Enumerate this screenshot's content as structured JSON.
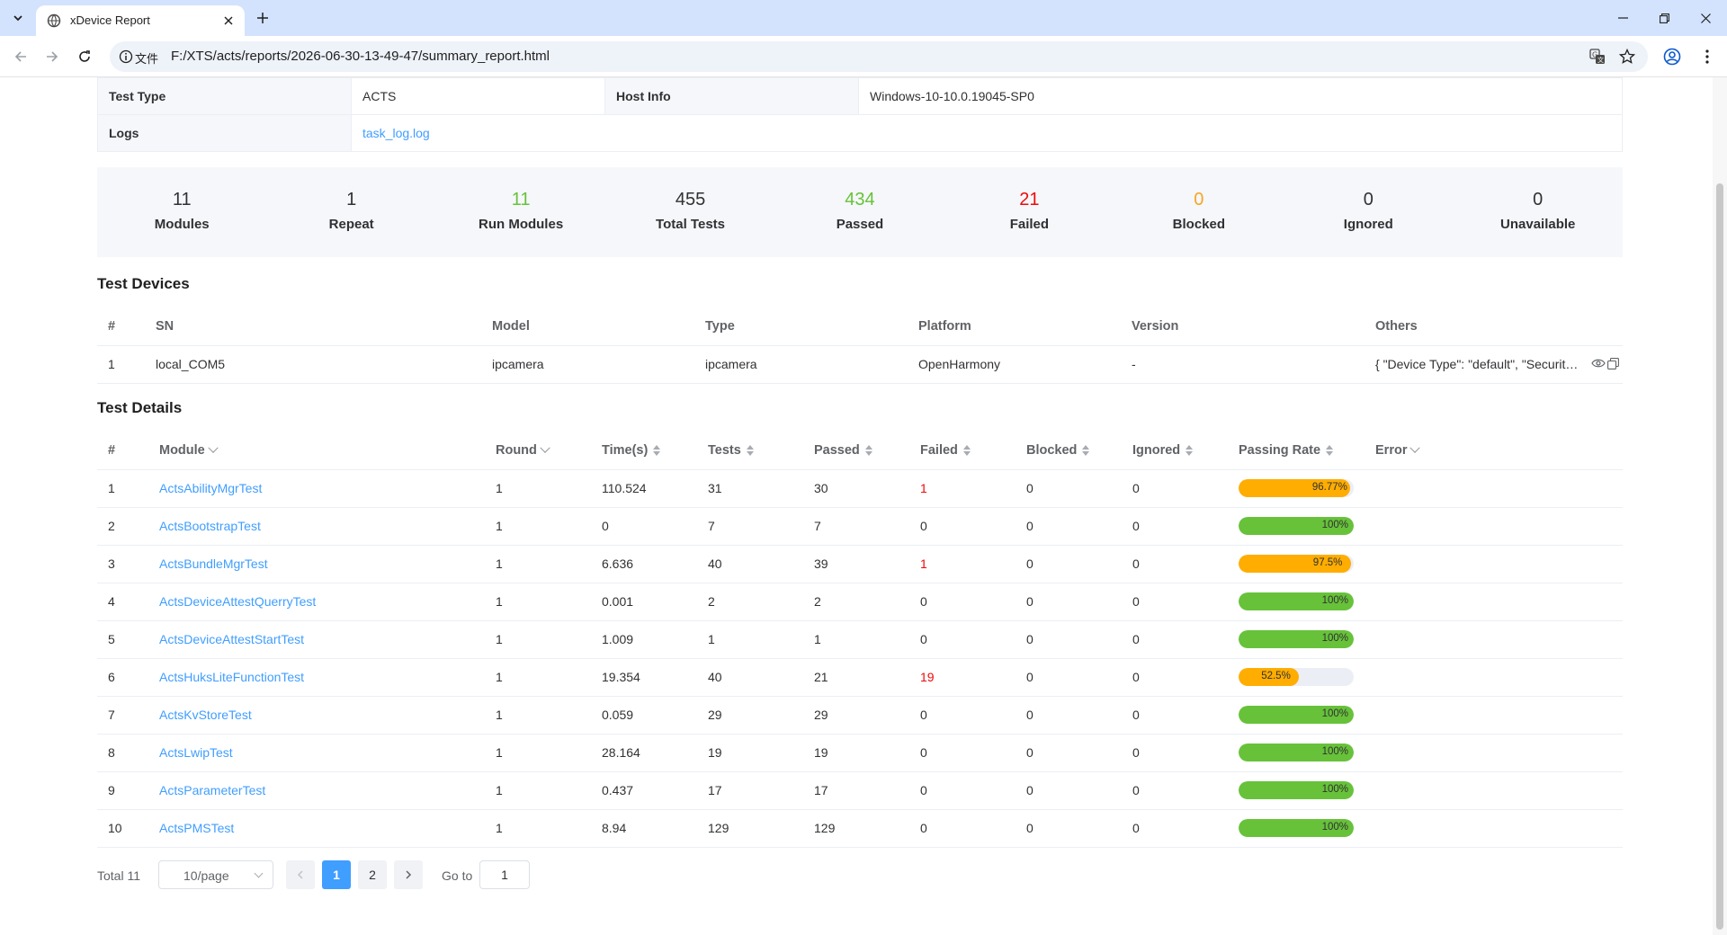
{
  "browser": {
    "tab_title": "xDevice Report",
    "omnibox_label": "文件",
    "url": "F:/XTS/acts/reports/2026-06-30-13-49-47/summary_report.html"
  },
  "info": {
    "test_type_label": "Test Type",
    "test_type_value": "ACTS",
    "host_info_label": "Host Info",
    "host_info_value": "Windows-10-10.0.19045-SP0",
    "logs_label": "Logs",
    "logs_value": "task_log.log"
  },
  "summary": [
    {
      "value": "11",
      "label": "Modules",
      "color": "#303133"
    },
    {
      "value": "1",
      "label": "Repeat",
      "color": "#303133"
    },
    {
      "value": "11",
      "label": "Run Modules",
      "color": "#67c23a"
    },
    {
      "value": "455",
      "label": "Total Tests",
      "color": "#303133"
    },
    {
      "value": "434",
      "label": "Passed",
      "color": "#67c23a"
    },
    {
      "value": "21",
      "label": "Failed",
      "color": "#ee0a0a"
    },
    {
      "value": "0",
      "label": "Blocked",
      "color": "#f5a623"
    },
    {
      "value": "0",
      "label": "Ignored",
      "color": "#303133"
    },
    {
      "value": "0",
      "label": "Unavailable",
      "color": "#303133"
    }
  ],
  "devices": {
    "title": "Test Devices",
    "headers": [
      "#",
      "SN",
      "Model",
      "Type",
      "Platform",
      "Version",
      "Others"
    ],
    "rows": [
      [
        "1",
        "local_COM5",
        "ipcamera",
        "ipcamera",
        "OpenHarmony",
        "-",
        "{ \"Device Type\": \"default\", \"Securit…"
      ]
    ]
  },
  "details": {
    "title": "Test Details",
    "headers": [
      "#",
      "Module",
      "Round",
      "Time(s)",
      "Tests",
      "Passed",
      "Failed",
      "Blocked",
      "Ignored",
      "Passing Rate",
      "Error"
    ],
    "rows": [
      {
        "num": "1",
        "module": "ActsAbilityMgrTest",
        "round": "1",
        "time": "110.524",
        "tests": "31",
        "passed": "30",
        "failed": "1",
        "blocked": "0",
        "ignored": "0",
        "rate": 96.77,
        "rate_text": "96.77%"
      },
      {
        "num": "2",
        "module": "ActsBootstrapTest",
        "round": "1",
        "time": "0",
        "tests": "7",
        "passed": "7",
        "failed": "0",
        "blocked": "0",
        "ignored": "0",
        "rate": 100,
        "rate_text": "100%"
      },
      {
        "num": "3",
        "module": "ActsBundleMgrTest",
        "round": "1",
        "time": "6.636",
        "tests": "40",
        "passed": "39",
        "failed": "1",
        "blocked": "0",
        "ignored": "0",
        "rate": 97.5,
        "rate_text": "97.5%"
      },
      {
        "num": "4",
        "module": "ActsDeviceAttestQuerryTest",
        "round": "1",
        "time": "0.001",
        "tests": "2",
        "passed": "2",
        "failed": "0",
        "blocked": "0",
        "ignored": "0",
        "rate": 100,
        "rate_text": "100%"
      },
      {
        "num": "5",
        "module": "ActsDeviceAttestStartTest",
        "round": "1",
        "time": "1.009",
        "tests": "1",
        "passed": "1",
        "failed": "0",
        "blocked": "0",
        "ignored": "0",
        "rate": 100,
        "rate_text": "100%"
      },
      {
        "num": "6",
        "module": "ActsHuksLiteFunctionTest",
        "round": "1",
        "time": "19.354",
        "tests": "40",
        "passed": "21",
        "failed": "19",
        "blocked": "0",
        "ignored": "0",
        "rate": 52.5,
        "rate_text": "52.5%"
      },
      {
        "num": "7",
        "module": "ActsKvStoreTest",
        "round": "1",
        "time": "0.059",
        "tests": "29",
        "passed": "29",
        "failed": "0",
        "blocked": "0",
        "ignored": "0",
        "rate": 100,
        "rate_text": "100%"
      },
      {
        "num": "8",
        "module": "ActsLwipTest",
        "round": "1",
        "time": "28.164",
        "tests": "19",
        "passed": "19",
        "failed": "0",
        "blocked": "0",
        "ignored": "0",
        "rate": 100,
        "rate_text": "100%"
      },
      {
        "num": "9",
        "module": "ActsParameterTest",
        "round": "1",
        "time": "0.437",
        "tests": "17",
        "passed": "17",
        "failed": "0",
        "blocked": "0",
        "ignored": "0",
        "rate": 100,
        "rate_text": "100%"
      },
      {
        "num": "10",
        "module": "ActsPMSTest",
        "round": "1",
        "time": "8.94",
        "tests": "129",
        "passed": "129",
        "failed": "0",
        "blocked": "0",
        "ignored": "0",
        "rate": 100,
        "rate_text": "100%"
      }
    ]
  },
  "pagination": {
    "total": "Total 11",
    "page_size": "10/page",
    "pages": [
      "1",
      "2"
    ],
    "goto_label": "Go to",
    "goto_value": "1"
  },
  "colors": {
    "link": "#409eff",
    "pass": "#67c23a",
    "warn": "#ffad00",
    "fail": "#ee0a0a"
  }
}
